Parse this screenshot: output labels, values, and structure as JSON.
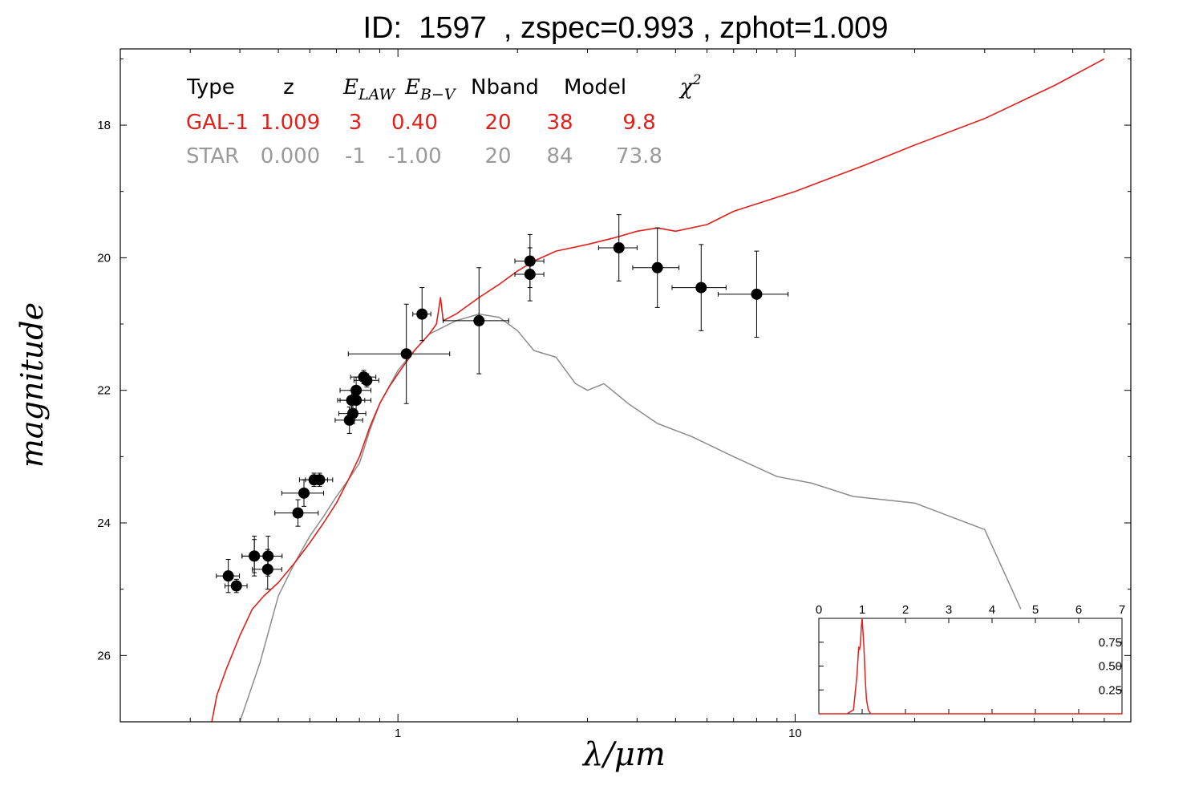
{
  "title": "ID:  1597  , zspec=0.993 , zphot=1.009",
  "xlabel": "λ/μm",
  "ylabel": "magnitude",
  "colors": {
    "galaxy": "#e0201b",
    "star": "#8c8c8c",
    "points": "#000000",
    "star_text": "#9a9a9a"
  },
  "legend": {
    "headers": [
      "Type",
      "z",
      "E_LAW",
      "E_B−V",
      "Nband",
      "Model",
      "χ²"
    ],
    "rows": [
      {
        "name": "galaxy",
        "values": [
          "GAL-1",
          "1.009",
          "3",
          "0.40",
          "20",
          "38",
          "9.8"
        ]
      },
      {
        "name": "star",
        "values": [
          "STAR",
          "0.000",
          "-1",
          "-1.00",
          "20",
          "84",
          "73.8"
        ]
      }
    ]
  },
  "chart_data": [
    {
      "type": "scatter",
      "xscale": "log",
      "xlim": [
        0.2,
        70
      ],
      "ylim": [
        27,
        16.85
      ],
      "y_inverted": true,
      "xticks": [
        1,
        10
      ],
      "xtick_labels": [
        "1",
        "10"
      ],
      "yticks": [
        18,
        20,
        22,
        24,
        26
      ],
      "ytick_labels": [
        "18",
        "20",
        "22",
        "24",
        "26"
      ],
      "grid": false,
      "series": [
        {
          "name": "GAL-1",
          "kind": "line",
          "x": [
            0.34,
            0.35,
            0.37,
            0.4,
            0.43,
            0.46,
            0.5,
            0.55,
            0.6,
            0.65,
            0.7,
            0.75,
            0.8,
            0.85,
            0.9,
            0.95,
            1.0,
            1.1,
            1.2,
            1.25,
            1.28,
            1.3,
            1.4,
            1.6,
            1.8,
            2.0,
            2.2,
            2.5,
            3.0,
            3.5,
            4.0,
            4.5,
            5.0,
            6.0,
            7.0,
            10.0,
            15.0,
            20.0,
            30.0,
            45.0,
            60.0
          ],
          "y": [
            27.0,
            26.6,
            26.2,
            25.7,
            25.3,
            25.1,
            24.9,
            24.6,
            24.3,
            24.0,
            23.7,
            23.35,
            23.0,
            22.55,
            22.2,
            21.95,
            21.75,
            21.4,
            21.15,
            21.0,
            20.6,
            20.95,
            20.85,
            20.6,
            20.4,
            20.2,
            20.05,
            19.9,
            19.8,
            19.7,
            19.6,
            19.55,
            19.6,
            19.5,
            19.3,
            19.0,
            18.6,
            18.3,
            17.9,
            17.4,
            17.0
          ]
        },
        {
          "name": "STAR",
          "kind": "line",
          "x": [
            0.4,
            0.45,
            0.5,
            0.55,
            0.6,
            0.65,
            0.7,
            0.75,
            0.8,
            0.85,
            0.9,
            1.0,
            1.1,
            1.2,
            1.4,
            1.6,
            1.8,
            2.0,
            2.2,
            2.5,
            2.8,
            3.0,
            3.3,
            3.8,
            4.5,
            5.5,
            7.0,
            9.0,
            11.0,
            14.0,
            20.0,
            30.0,
            37.0
          ],
          "y": [
            27.0,
            26.1,
            25.1,
            24.6,
            24.2,
            23.9,
            23.6,
            23.35,
            23.1,
            22.6,
            22.2,
            21.7,
            21.4,
            21.15,
            20.95,
            20.85,
            20.9,
            21.1,
            21.4,
            21.5,
            21.9,
            22.0,
            21.9,
            22.2,
            22.5,
            22.7,
            23.0,
            23.3,
            23.4,
            23.6,
            23.7,
            24.1,
            25.3
          ]
        },
        {
          "name": "photometry",
          "kind": "points",
          "x": [
            0.374,
            0.392,
            0.435,
            0.47,
            0.471,
            0.435,
            0.56,
            0.58,
            0.615,
            0.635,
            0.755,
            0.77,
            0.765,
            0.785,
            0.785,
            0.82,
            0.835,
            1.05,
            1.15,
            1.6,
            2.15,
            2.15,
            3.6,
            4.5,
            5.8,
            8.0
          ],
          "y": [
            24.8,
            24.95,
            24.5,
            24.7,
            24.5,
            24.5,
            23.85,
            23.55,
            23.35,
            23.35,
            22.45,
            22.35,
            22.15,
            22.0,
            22.15,
            21.8,
            21.85,
            21.45,
            20.85,
            20.95,
            20.05,
            20.25,
            19.85,
            20.15,
            20.45,
            20.55
          ],
          "xerr": [
            0.025,
            0.025,
            0.03,
            0.04,
            0.04,
            0.03,
            0.07,
            0.07,
            0.05,
            0.05,
            0.06,
            0.06,
            0.06,
            0.07,
            0.07,
            0.06,
            0.06,
            0.3,
            0.06,
            0.3,
            0.18,
            0.18,
            0.4,
            0.6,
            0.9,
            1.6
          ],
          "yerr": [
            0.25,
            0.1,
            0.3,
            0.3,
            0.3,
            0.25,
            0.2,
            0.2,
            0.1,
            0.1,
            0.2,
            0.15,
            0.15,
            0.2,
            0.2,
            0.1,
            0.1,
            0.75,
            0.4,
            0.8,
            0.4,
            0.4,
            0.5,
            0.6,
            0.65,
            0.65
          ]
        }
      ]
    },
    {
      "type": "line",
      "name": "inset",
      "xlim": [
        0,
        7
      ],
      "ylim": [
        0,
        1.0
      ],
      "xticks": [
        0,
        1,
        2,
        3,
        4,
        5,
        6,
        7
      ],
      "xtick_labels": [
        "0",
        "1",
        "2",
        "3",
        "4",
        "5",
        "6",
        "7"
      ],
      "yticks": [
        0.25,
        0.5,
        0.75
      ],
      "ytick_labels": [
        "0.25",
        "0.50",
        "0.75"
      ],
      "series": [
        {
          "name": "PDF",
          "x": [
            0.0,
            0.65,
            0.8,
            0.88,
            0.92,
            0.94,
            0.96,
            0.98,
            1.0,
            1.02,
            1.04,
            1.06,
            1.08,
            1.1,
            1.14,
            1.2,
            7.0
          ],
          "y": [
            0.0,
            0.0,
            0.04,
            0.4,
            0.7,
            0.68,
            0.72,
            0.9,
            1.0,
            0.85,
            0.7,
            0.5,
            0.3,
            0.15,
            0.04,
            0.0,
            0.0
          ]
        }
      ]
    }
  ]
}
